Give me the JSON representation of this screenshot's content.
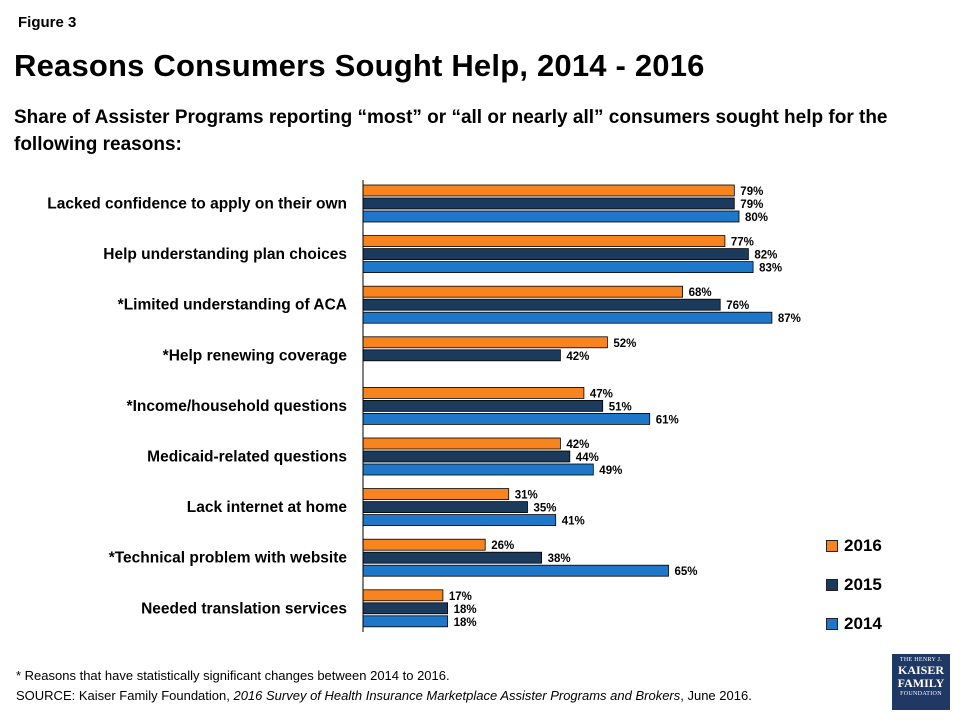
{
  "figure_label": "Figure 3",
  "title": "Reasons Consumers Sought Help, 2014 - 2016",
  "subtitle": "Share of Assister Programs reporting “most” or “all or nearly all” consumers sought help for the following reasons:",
  "footnote": "* Reasons that have statistically significant changes between 2014 to 2016.",
  "source": {
    "prefix": "SOURCE: Kaiser Family Foundation, ",
    "title": "2016 Survey of Health Insurance Marketplace Assister Programs and Brokers",
    "suffix": ", June 2016."
  },
  "logo": {
    "top": "THE HENRY J.",
    "line1": "KAISER",
    "line2": "FAMILY",
    "bottom": "FOUNDATION"
  },
  "chart_data": {
    "type": "bar",
    "orientation": "horizontal",
    "categories": [
      "Lacked confidence to apply on their own",
      "Help understanding plan choices",
      "*Limited understanding of ACA",
      "*Help renewing coverage",
      "*Income/household questions",
      "Medicaid-related questions",
      "Lack internet at home",
      "*Technical problem with website",
      "Needed translation services"
    ],
    "series": [
      {
        "name": "2016",
        "color": "#f7841f",
        "values": [
          79,
          77,
          68,
          52,
          47,
          42,
          31,
          26,
          17
        ]
      },
      {
        "name": "2015",
        "color": "#1b3a5c",
        "values": [
          79,
          82,
          76,
          42,
          51,
          44,
          35,
          38,
          18
        ]
      },
      {
        "name": "2014",
        "color": "#1f77c9",
        "values": [
          80,
          83,
          87,
          null,
          61,
          49,
          41,
          65,
          18
        ]
      }
    ],
    "value_suffix": "%",
    "xlim": [
      0,
      100
    ],
    "legend_position": "bottom-right",
    "grid": false
  }
}
